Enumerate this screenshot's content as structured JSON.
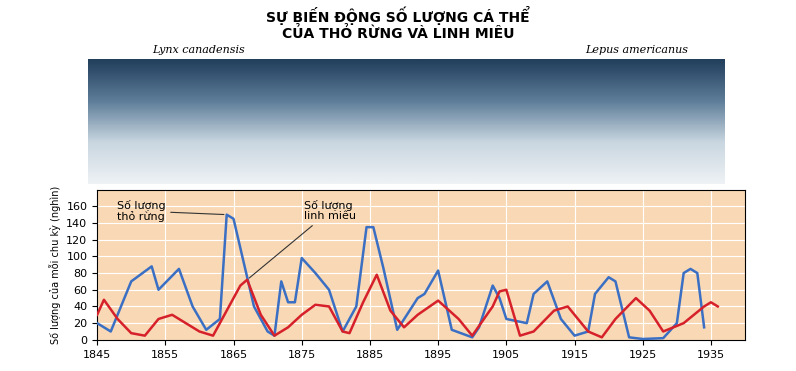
{
  "chart_data": {
    "type": "line",
    "title": "SỰ BIẾN ĐỘNG SỐ LƯỢNG CÁ THỂ\nCỦA THỎ RỪNG VÀ LINH MIÊU",
    "image_captions": [
      "Lynx canadensis",
      "Lepus americanus"
    ],
    "y_label": "Số lượng của mỗi chu kỳ (nghìn)",
    "xlim": [
      1845,
      1940
    ],
    "xticks": [
      1845,
      1855,
      1865,
      1875,
      1885,
      1895,
      1905,
      1915,
      1925,
      1935
    ],
    "ylim": [
      0,
      180
    ],
    "yticks": [
      0,
      20,
      40,
      60,
      80,
      100,
      120,
      140,
      160
    ],
    "grid": true,
    "series": [
      {
        "name": "Số lượng\nthỏ rừng",
        "color": "#3a6fc4",
        "x": [
          1845,
          1847,
          1850,
          1853,
          1854,
          1857,
          1859,
          1861,
          1863,
          1864,
          1865,
          1868,
          1870,
          1871,
          1872,
          1873,
          1874,
          1875,
          1877,
          1879,
          1881,
          1883,
          1884.5,
          1885.5,
          1887,
          1889,
          1892,
          1893,
          1895,
          1897,
          1900,
          1901,
          1903,
          1904,
          1905,
          1908,
          1909,
          1911,
          1913,
          1915,
          1917,
          1918,
          1920,
          1921,
          1923,
          1925,
          1928,
          1930,
          1931,
          1932,
          1933,
          1934
        ],
        "values": [
          20,
          10,
          70,
          88,
          60,
          85,
          40,
          12,
          25,
          150,
          145,
          40,
          10,
          5,
          70,
          45,
          45,
          98,
          80,
          60,
          10,
          40,
          135,
          135,
          85,
          12,
          50,
          55,
          83,
          12,
          3,
          15,
          65,
          50,
          25,
          20,
          55,
          70,
          25,
          5,
          10,
          55,
          75,
          70,
          3,
          1,
          2,
          20,
          80,
          85,
          80,
          15
        ]
      },
      {
        "name": "Số lượng\nlinh miêu",
        "color": "#d6202a",
        "x": [
          1845,
          1846,
          1848,
          1850,
          1852,
          1854,
          1856,
          1858,
          1860,
          1862,
          1864,
          1866,
          1867,
          1869,
          1871,
          1873,
          1875,
          1877,
          1879,
          1881,
          1882,
          1884,
          1886,
          1888,
          1890,
          1892,
          1895,
          1898,
          1900,
          1903,
          1904,
          1905,
          1907,
          1909,
          1912,
          1914,
          1917,
          1919,
          1921,
          1924,
          1926,
          1928,
          1931,
          1934,
          1935,
          1936
        ],
        "values": [
          30,
          48,
          25,
          8,
          5,
          25,
          30,
          20,
          10,
          5,
          35,
          65,
          72,
          30,
          5,
          15,
          30,
          42,
          40,
          10,
          8,
          45,
          78,
          35,
          15,
          30,
          47,
          25,
          5,
          40,
          58,
          60,
          5,
          10,
          35,
          40,
          10,
          3,
          25,
          50,
          35,
          10,
          20,
          40,
          45,
          40
        ]
      }
    ]
  }
}
